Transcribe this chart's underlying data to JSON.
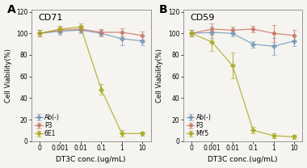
{
  "panel_A": {
    "title": "CD71",
    "label": "A",
    "series": {
      "Ab(-)": {
        "y": [
          100,
          102,
          103,
          100,
          95,
          93
        ],
        "yerr": [
          3,
          3,
          3,
          3,
          6,
          4
        ],
        "color": "#7799bb",
        "marker": "D",
        "linestyle": "-"
      },
      "P3": {
        "y": [
          100,
          103,
          104,
          101,
          101,
          98
        ],
        "yerr": [
          3,
          3,
          3,
          3,
          4,
          4
        ],
        "color": "#cc7766",
        "marker": "o",
        "linestyle": "-"
      },
      "6E1": {
        "y": [
          100,
          104,
          106,
          48,
          7,
          7
        ],
        "yerr": [
          3,
          3,
          3,
          5,
          3,
          2
        ],
        "color": "#aaaa22",
        "marker": "D",
        "linestyle": "-"
      }
    },
    "xlabel": "DT3C conc.(ug/mL)",
    "ylabel": "Cell Viability(%)",
    "ylim": [
      0,
      122
    ],
    "yticks": [
      0,
      20,
      40,
      60,
      80,
      100,
      120
    ]
  },
  "panel_B": {
    "title": "CD59",
    "label": "B",
    "series": {
      "Ab(-)": {
        "y": [
          100,
          101,
          100,
          90,
          88,
          93
        ],
        "yerr": [
          3,
          5,
          3,
          3,
          8,
          5
        ],
        "color": "#7799bb",
        "marker": "D",
        "linestyle": "-"
      },
      "P3": {
        "y": [
          100,
          104,
          103,
          104,
          100,
          98
        ],
        "yerr": [
          3,
          5,
          3,
          3,
          8,
          5
        ],
        "color": "#cc7766",
        "marker": "o",
        "linestyle": "-"
      },
      "MY5": {
        "y": [
          100,
          92,
          70,
          10,
          5,
          4
        ],
        "yerr": [
          3,
          8,
          12,
          3,
          2,
          2
        ],
        "color": "#aaaa22",
        "marker": "D",
        "linestyle": "-"
      }
    },
    "xlabel": "DT3C conc.(ug/mL)",
    "ylabel": "Cell Viability(%)",
    "ylim": [
      0,
      122
    ],
    "yticks": [
      0,
      20,
      40,
      60,
      80,
      100,
      120
    ]
  },
  "x_positions": [
    0,
    1,
    2,
    3,
    4,
    5
  ],
  "x_labels": [
    "0",
    "0.001",
    "0.01",
    "0.1",
    "1",
    "10"
  ],
  "bg_color": "#f5f4f0",
  "plot_bg": "#f5f4f0",
  "markersize": 3.2,
  "linewidth": 0.9,
  "capsize": 2,
  "elinewidth": 0.8,
  "legend_fontsize": 5.5,
  "tick_fontsize": 5.5,
  "xlabel_fontsize": 6.5,
  "ylabel_fontsize": 6.0,
  "title_fontsize": 8,
  "panel_label_fontsize": 10
}
